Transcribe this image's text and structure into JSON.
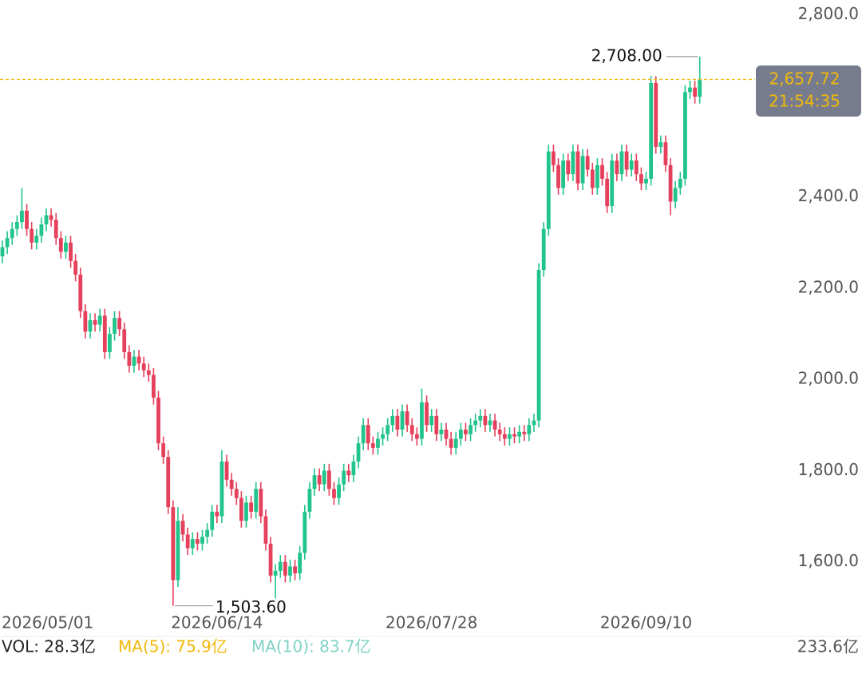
{
  "chart_data": {
    "type": "candlestick",
    "up_color": "#21c48b",
    "down_color": "#e5405c",
    "categories": [
      "2026/05/01",
      null,
      null,
      null,
      null,
      null,
      null,
      null,
      null,
      null,
      null,
      null,
      null,
      null,
      null,
      null,
      null,
      null,
      null,
      null,
      null,
      null,
      null,
      null,
      null,
      null,
      null,
      null,
      null,
      null,
      null,
      null,
      null,
      null,
      null,
      null,
      null,
      null,
      null,
      null,
      null,
      null,
      null,
      null,
      "2026/06/14",
      null,
      null,
      null,
      null,
      null,
      null,
      null,
      null,
      null,
      null,
      null,
      null,
      null,
      null,
      null,
      null,
      null,
      null,
      null,
      null,
      null,
      null,
      null,
      null,
      null,
      null,
      null,
      null,
      null,
      null,
      null,
      null,
      null,
      null,
      null,
      null,
      null,
      null,
      null,
      null,
      null,
      null,
      null,
      "2026/07/28",
      null,
      null,
      null,
      null,
      null,
      null,
      null,
      null,
      null,
      null,
      null,
      null,
      null,
      null,
      null,
      null,
      null,
      null,
      null,
      null,
      null,
      null,
      null,
      null,
      null,
      null,
      null,
      null,
      null,
      null,
      null,
      null,
      null,
      null,
      null,
      null,
      null,
      null,
      null,
      null,
      null,
      null,
      null,
      "2026/09/10",
      null,
      null,
      null,
      null,
      null,
      null,
      null,
      null,
      null,
      null,
      null
    ],
    "open": [
      2270,
      2290,
      2310,
      2330,
      2345,
      2370,
      2330,
      2300,
      2315,
      2340,
      2360,
      2350,
      2310,
      2280,
      2300,
      2260,
      2230,
      2150,
      2105,
      2130,
      2120,
      2140,
      2060,
      2100,
      2135,
      2110,
      2060,
      2030,
      2050,
      2035,
      2020,
      2010,
      1960,
      1860,
      1830,
      1720,
      1560,
      1690,
      1660,
      1630,
      1650,
      1640,
      1655,
      1670,
      1710,
      1700,
      1820,
      1780,
      1760,
      1740,
      1690,
      1730,
      1710,
      1760,
      1700,
      1640,
      1570,
      1580,
      1600,
      1570,
      1590,
      1575,
      1620,
      1710,
      1760,
      1790,
      1770,
      1800,
      1760,
      1740,
      1770,
      1800,
      1790,
      1820,
      1860,
      1900,
      1860,
      1850,
      1870,
      1880,
      1900,
      1920,
      1890,
      1930,
      1900,
      1880,
      1870,
      1950,
      1900,
      1920,
      1880,
      1890,
      1870,
      1850,
      1870,
      1890,
      1880,
      1900,
      1910,
      1920,
      1900,
      1910,
      1890,
      1880,
      1870,
      1880,
      1875,
      1885,
      1880,
      1900,
      1910,
      2240,
      2330,
      2500,
      2470,
      2420,
      2480,
      2450,
      2500,
      2430,
      2490,
      2460,
      2420,
      2470,
      2440,
      2380,
      2480,
      2450,
      2500,
      2460,
      2480,
      2450,
      2430,
      2440,
      2650,
      2510,
      2520,
      2470,
      2390,
      2420,
      2440,
      2630,
      2640,
      2620
    ],
    "high": [
      2305,
      2325,
      2345,
      2360,
      2420,
      2385,
      2345,
      2330,
      2355,
      2375,
      2375,
      2365,
      2325,
      2315,
      2315,
      2275,
      2245,
      2165,
      2145,
      2145,
      2155,
      2155,
      2115,
      2150,
      2150,
      2125,
      2075,
      2065,
      2065,
      2050,
      2035,
      2025,
      1975,
      1875,
      1845,
      1735,
      1720,
      1705,
      1675,
      1665,
      1665,
      1670,
      1685,
      1725,
      1725,
      1845,
      1835,
      1795,
      1775,
      1755,
      1745,
      1745,
      1775,
      1775,
      1715,
      1655,
      1595,
      1615,
      1615,
      1605,
      1605,
      1635,
      1725,
      1775,
      1805,
      1805,
      1815,
      1815,
      1775,
      1785,
      1815,
      1815,
      1835,
      1875,
      1915,
      1915,
      1875,
      1885,
      1895,
      1915,
      1935,
      1935,
      1945,
      1945,
      1915,
      1895,
      1980,
      1965,
      1935,
      1935,
      1905,
      1905,
      1885,
      1885,
      1905,
      1905,
      1915,
      1925,
      1935,
      1935,
      1925,
      1925,
      1905,
      1895,
      1895,
      1895,
      1900,
      1900,
      1915,
      1925,
      2255,
      2345,
      2515,
      2515,
      2485,
      2495,
      2495,
      2515,
      2515,
      2505,
      2505,
      2475,
      2485,
      2485,
      2455,
      2495,
      2495,
      2515,
      2515,
      2495,
      2495,
      2465,
      2455,
      2665,
      2665,
      2535,
      2535,
      2485,
      2435,
      2455,
      2645,
      2655,
      2655,
      2708
    ],
    "low": [
      2255,
      2275,
      2295,
      2315,
      2330,
      2315,
      2285,
      2285,
      2300,
      2325,
      2335,
      2295,
      2265,
      2265,
      2245,
      2215,
      2135,
      2090,
      2090,
      2105,
      2105,
      2045,
      2045,
      2085,
      2095,
      2045,
      2015,
      2015,
      2020,
      2005,
      1995,
      1945,
      1845,
      1815,
      1705,
      1503.6,
      1545,
      1645,
      1615,
      1615,
      1625,
      1625,
      1640,
      1655,
      1685,
      1685,
      1765,
      1745,
      1725,
      1675,
      1675,
      1695,
      1695,
      1685,
      1625,
      1555,
      1520,
      1565,
      1555,
      1555,
      1560,
      1560,
      1605,
      1695,
      1745,
      1755,
      1755,
      1745,
      1725,
      1725,
      1755,
      1775,
      1775,
      1805,
      1845,
      1845,
      1835,
      1835,
      1855,
      1865,
      1885,
      1875,
      1875,
      1885,
      1865,
      1855,
      1855,
      1885,
      1885,
      1865,
      1865,
      1855,
      1835,
      1835,
      1855,
      1865,
      1865,
      1885,
      1895,
      1885,
      1885,
      1875,
      1865,
      1855,
      1855,
      1860,
      1860,
      1865,
      1865,
      1885,
      1895,
      2225,
      2315,
      2455,
      2405,
      2405,
      2435,
      2435,
      2415,
      2415,
      2445,
      2405,
      2405,
      2425,
      2365,
      2365,
      2435,
      2435,
      2445,
      2445,
      2435,
      2415,
      2415,
      2425,
      2495,
      2495,
      2455,
      2360,
      2375,
      2405,
      2425,
      2615,
      2605,
      2605
    ],
    "close": [
      2290,
      2310,
      2330,
      2345,
      2370,
      2330,
      2300,
      2315,
      2340,
      2360,
      2350,
      2310,
      2280,
      2300,
      2260,
      2230,
      2150,
      2105,
      2130,
      2120,
      2140,
      2060,
      2100,
      2135,
      2110,
      2060,
      2030,
      2050,
      2035,
      2020,
      2010,
      1960,
      1860,
      1830,
      1720,
      1560,
      1690,
      1660,
      1630,
      1650,
      1640,
      1655,
      1670,
      1710,
      1700,
      1820,
      1780,
      1760,
      1740,
      1690,
      1730,
      1710,
      1760,
      1700,
      1640,
      1570,
      1580,
      1600,
      1570,
      1590,
      1575,
      1620,
      1710,
      1760,
      1790,
      1770,
      1800,
      1760,
      1740,
      1770,
      1800,
      1790,
      1820,
      1860,
      1900,
      1860,
      1850,
      1870,
      1880,
      1900,
      1920,
      1890,
      1930,
      1900,
      1880,
      1870,
      1950,
      1900,
      1920,
      1880,
      1890,
      1870,
      1850,
      1870,
      1890,
      1880,
      1900,
      1910,
      1920,
      1900,
      1910,
      1890,
      1880,
      1870,
      1880,
      1875,
      1885,
      1880,
      1900,
      1910,
      2240,
      2330,
      2500,
      2470,
      2420,
      2480,
      2450,
      2500,
      2430,
      2490,
      2460,
      2420,
      2470,
      2440,
      2380,
      2480,
      2450,
      2500,
      2460,
      2480,
      2450,
      2430,
      2440,
      2650,
      2510,
      2520,
      2470,
      2390,
      2420,
      2440,
      2630,
      2640,
      2620,
      2657.72
    ],
    "ylim": [
      1440,
      2832
    ],
    "yticks": [
      {
        "value": 1600,
        "label": "1,600.0"
      },
      {
        "value": 1800,
        "label": "1,800.0"
      },
      {
        "value": 2000,
        "label": "2,000.0"
      },
      {
        "value": 2200,
        "label": "2,200.0"
      },
      {
        "value": 2400,
        "label": "2,400.0"
      },
      {
        "value": 2800,
        "label": "2,800.0"
      }
    ],
    "max_marker": {
      "value": 2708,
      "label": "2,708.00"
    },
    "min_marker": {
      "value": 1503.6,
      "label": "1,503.60"
    },
    "last_price": {
      "value": 2657.72,
      "label": "2,657.72",
      "time": "21:54:35",
      "color": "#f0b90b"
    },
    "volume_bar": {
      "vol": "VOL: 28.3亿",
      "ma5": "MA(5): 75.9亿",
      "ma10": "MA(10): 83.7亿",
      "axis_max": "233.6亿"
    }
  }
}
